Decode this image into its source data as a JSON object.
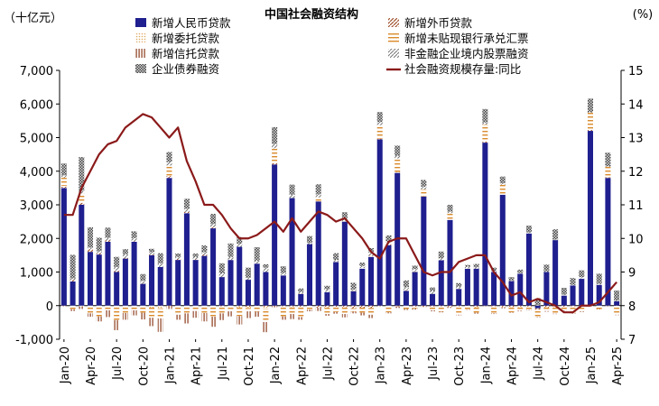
{
  "chart_data": {
    "type": "bar",
    "title": "中国社会融资结构",
    "y_left_unit": "（十亿元）",
    "y_right_unit": "(%)",
    "ylim_left": [
      -1000,
      7000
    ],
    "yticks_left": [
      "-1,000",
      "0",
      "1,000",
      "2,000",
      "3,000",
      "4,000",
      "5,000",
      "6,000",
      "7,000"
    ],
    "ylim_right": [
      7,
      15
    ],
    "yticks_right": [
      "7",
      "8",
      "9",
      "10",
      "11",
      "12",
      "13",
      "14",
      "15"
    ],
    "grid": false,
    "legend_position": "top",
    "x_tick_labels": [
      "Jan-20",
      "Apr-20",
      "Jul-20",
      "Oct-20",
      "Jan-21",
      "Apr-21",
      "Jul-21",
      "Oct-21",
      "Jan-22",
      "Apr-22",
      "Jul-22",
      "Oct-22",
      "Jan-23",
      "Apr-23",
      "Jul-23",
      "Oct-23",
      "Jan-24",
      "Apr-24",
      "Jul-24",
      "Oct-24",
      "Jan-25",
      "Apr-25"
    ],
    "categories": [
      "Jan-20",
      "Feb-20",
      "Mar-20",
      "Apr-20",
      "May-20",
      "Jun-20",
      "Jul-20",
      "Aug-20",
      "Sep-20",
      "Oct-20",
      "Nov-20",
      "Dec-20",
      "Jan-21",
      "Feb-21",
      "Mar-21",
      "Apr-21",
      "May-21",
      "Jun-21",
      "Jul-21",
      "Aug-21",
      "Sep-21",
      "Oct-21",
      "Nov-21",
      "Dec-21",
      "Jan-22",
      "Feb-22",
      "Mar-22",
      "Apr-22",
      "May-22",
      "Jun-22",
      "Jul-22",
      "Aug-22",
      "Sep-22",
      "Oct-22",
      "Nov-22",
      "Dec-22",
      "Jan-23",
      "Feb-23",
      "Mar-23",
      "Apr-23",
      "May-23",
      "Jun-23",
      "Jul-23",
      "Aug-23",
      "Sep-23",
      "Oct-23",
      "Nov-23",
      "Dec-23",
      "Jan-24",
      "Feb-24",
      "Mar-24",
      "Apr-24",
      "May-24",
      "Jun-24",
      "Jul-24",
      "Aug-24",
      "Sep-24",
      "Oct-24",
      "Nov-24",
      "Dec-24",
      "Jan-25",
      "Feb-25",
      "Mar-25",
      "Apr-25"
    ],
    "series": [
      {
        "name": "新增人民币贷款",
        "axis": "left",
        "kind": "bar",
        "color": "#1f1f8f",
        "values": [
          3500,
          720,
          3000,
          1600,
          1520,
          1900,
          1000,
          1400,
          1900,
          650,
          1500,
          1150,
          3800,
          1360,
          2750,
          1360,
          1480,
          2300,
          850,
          1360,
          1750,
          770,
          1250,
          1000,
          4200,
          900,
          3200,
          350,
          1830,
          3100,
          400,
          1300,
          2500,
          430,
          1100,
          1450,
          4950,
          1800,
          3950,
          440,
          1000,
          3250,
          350,
          1350,
          2550,
          500,
          1100,
          1100,
          4850,
          1000,
          3300,
          730,
          950,
          2150,
          -80,
          1000,
          1950,
          300,
          600,
          800,
          5200,
          620,
          3800,
          130
        ]
      },
      {
        "name": "新增外币贷款",
        "axis": "left",
        "kind": "bar",
        "color": "#a0522d",
        "pattern": "diag",
        "values": [
          40,
          50,
          60,
          70,
          40,
          40,
          30,
          20,
          20,
          10,
          20,
          -10,
          60,
          30,
          40,
          20,
          30,
          40,
          -20,
          10,
          -20,
          -40,
          -10,
          -30,
          40,
          -20,
          -30,
          -40,
          -10,
          -60,
          -50,
          -40,
          -50,
          -80,
          -60,
          -70,
          10,
          20,
          -20,
          20,
          -30,
          -20,
          -30,
          -20,
          -30,
          -20,
          -10,
          -40,
          30,
          -20,
          -30,
          -40,
          -30,
          -30,
          -40,
          -50,
          -30,
          -40,
          -20,
          -20,
          30,
          10,
          20,
          -10
        ]
      },
      {
        "name": "新增委托贷款",
        "axis": "left",
        "kind": "bar",
        "color": "#e0a860",
        "pattern": "dots",
        "values": [
          30,
          -10,
          -20,
          -30,
          -20,
          -40,
          -30,
          -20,
          -40,
          -10,
          -60,
          -70,
          10,
          -20,
          -30,
          -10,
          -20,
          -30,
          -10,
          -20,
          -40,
          -30,
          -20,
          -60,
          20,
          10,
          -20,
          10,
          -10,
          20,
          10,
          10,
          20,
          10,
          20,
          30,
          10,
          20,
          30,
          10,
          20,
          10,
          -10,
          -10,
          -10,
          10,
          10,
          -20,
          10,
          -10,
          -20,
          -10,
          -20,
          10,
          -10,
          -10,
          -10,
          10,
          -10,
          10,
          10,
          10,
          10,
          -10
        ]
      },
      {
        "name": "新增未贴现银行承兑汇票",
        "axis": "left",
        "kind": "bar",
        "color": "#d98a2b",
        "pattern": "hbar",
        "values": [
          240,
          -100,
          280,
          -200,
          -300,
          -100,
          -400,
          -200,
          -100,
          -200,
          -300,
          -300,
          300,
          -250,
          -200,
          -150,
          -200,
          -300,
          -200,
          -150,
          -250,
          -100,
          -150,
          -400,
          420,
          -300,
          -200,
          -300,
          -100,
          100,
          -200,
          -150,
          -200,
          -100,
          -150,
          -200,
          400,
          -200,
          400,
          -100,
          -50,
          200,
          -100,
          -150,
          200,
          -250,
          -100,
          -150,
          500,
          -200,
          300,
          -150,
          -100,
          -100,
          -200,
          -100,
          -200,
          -100,
          -200,
          -150,
          500,
          -100,
          300,
          -250
        ]
      },
      {
        "name": "新增信托贷款",
        "axis": "left",
        "kind": "bar",
        "color": "#8b3a1a",
        "pattern": "vbar",
        "values": [
          -20,
          -50,
          -80,
          -100,
          -150,
          -200,
          -300,
          -200,
          -150,
          -200,
          -250,
          -400,
          -100,
          -150,
          -300,
          -200,
          -250,
          -300,
          -200,
          -150,
          -250,
          -200,
          -150,
          -300,
          -50,
          -100,
          -150,
          -80,
          -50,
          -100,
          -50,
          -50,
          -100,
          -50,
          -80,
          -100,
          -20,
          -30,
          -50,
          -30,
          -40,
          -20,
          -30,
          -20,
          -30,
          -20,
          -10,
          -30,
          -10,
          -20,
          -30,
          -10,
          -20,
          -10,
          -10,
          -20,
          -10,
          -10,
          -10,
          -20,
          -10,
          -10,
          -10,
          -10
        ]
      },
      {
        "name": "非金融企业境内股票融资",
        "axis": "left",
        "kind": "bar",
        "color": "#777777",
        "pattern": "diag",
        "values": [
          70,
          40,
          80,
          60,
          60,
          80,
          120,
          110,
          90,
          80,
          70,
          110,
          100,
          60,
          90,
          70,
          80,
          90,
          110,
          80,
          90,
          60,
          90,
          130,
          130,
          60,
          100,
          50,
          40,
          90,
          80,
          50,
          60,
          40,
          60,
          130,
          90,
          50,
          80,
          80,
          70,
          80,
          90,
          60,
          50,
          60,
          50,
          40,
          60,
          30,
          40,
          20,
          20,
          20,
          20,
          20,
          20,
          20,
          20,
          40,
          20,
          10,
          20,
          20
        ]
      },
      {
        "name": "企业债券融资",
        "axis": "left",
        "kind": "bar",
        "color": "#555555",
        "pattern": "check",
        "values": [
          350,
          700,
          1000,
          600,
          400,
          300,
          300,
          150,
          200,
          200,
          100,
          300,
          300,
          100,
          300,
          100,
          200,
          300,
          300,
          400,
          200,
          300,
          400,
          100,
          500,
          200,
          300,
          100,
          200,
          300,
          100,
          200,
          200,
          200,
          100,
          100,
          300,
          200,
          300,
          200,
          100,
          200,
          100,
          200,
          200,
          100,
          50,
          100,
          400,
          100,
          200,
          100,
          100,
          200,
          200,
          200,
          300,
          200,
          200,
          200,
          400,
          300,
          400,
          300
        ]
      },
      {
        "name": "社会融资规模存量:同比",
        "axis": "right",
        "kind": "line",
        "color": "#8b1a1a",
        "values": [
          10.7,
          10.7,
          11.5,
          12.0,
          12.5,
          12.8,
          12.9,
          13.3,
          13.5,
          13.7,
          13.6,
          13.3,
          13.0,
          13.3,
          12.3,
          11.7,
          11.0,
          11.0,
          10.7,
          10.3,
          10.0,
          10.0,
          10.1,
          10.3,
          10.5,
          10.2,
          10.6,
          10.2,
          10.5,
          10.8,
          10.7,
          10.5,
          10.6,
          10.3,
          10.0,
          9.6,
          9.4,
          9.9,
          10.0,
          10.0,
          9.5,
          9.0,
          8.9,
          9.0,
          9.0,
          9.3,
          9.4,
          9.5,
          9.5,
          9.0,
          8.7,
          8.3,
          8.4,
          8.1,
          8.2,
          8.1,
          8.0,
          7.8,
          7.8,
          8.0,
          8.0,
          8.1,
          8.4,
          8.7
        ]
      }
    ]
  }
}
